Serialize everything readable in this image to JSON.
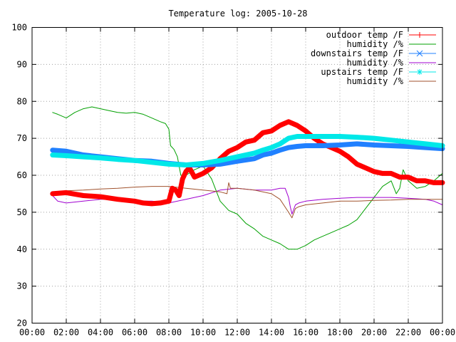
{
  "chart_data": {
    "type": "line",
    "title": "Temperature log: 2005-10-28",
    "xlabel": "",
    "ylabel": "",
    "xlim": [
      0,
      24
    ],
    "ylim": [
      20,
      100
    ],
    "grid": true,
    "legend_position": "top-right",
    "x_tick_labels": [
      "00:00",
      "02:00",
      "04:00",
      "06:00",
      "08:00",
      "10:00",
      "12:00",
      "14:00",
      "16:00",
      "18:00",
      "20:00",
      "22:00",
      "00:00"
    ],
    "y_tick_labels": [
      "20",
      "30",
      "40",
      "50",
      "60",
      "70",
      "80",
      "90",
      "100"
    ],
    "series": [
      {
        "name": "outdoor temp /F",
        "color": "#ff0000",
        "style": "thick",
        "x": [
          1.2,
          2.0,
          3.0,
          4.0,
          5.0,
          6.0,
          6.5,
          7.0,
          7.5,
          8.0,
          8.2,
          8.4,
          8.6,
          8.8,
          9.0,
          9.2,
          9.5,
          10.0,
          10.5,
          11.0,
          11.5,
          12.0,
          12.5,
          13.0,
          13.5,
          14.0,
          14.5,
          15.0,
          15.5,
          16.0,
          16.5,
          17.0,
          17.5,
          18.0,
          18.5,
          19.0,
          19.5,
          20.0,
          20.5,
          21.0,
          21.5,
          22.0,
          22.5,
          23.0,
          23.5,
          24.0
        ],
        "y": [
          55.0,
          55.3,
          54.5,
          54.2,
          53.5,
          53.0,
          52.5,
          52.3,
          52.5,
          53.0,
          56.5,
          56.0,
          54.5,
          59.0,
          61.0,
          62.0,
          59.5,
          60.5,
          62.0,
          64.5,
          66.5,
          67.5,
          69.0,
          69.5,
          71.5,
          72.0,
          73.5,
          74.5,
          73.5,
          72.0,
          70.0,
          68.5,
          67.5,
          66.5,
          65.0,
          63.0,
          62.0,
          61.0,
          60.5,
          60.5,
          59.5,
          59.5,
          58.5,
          58.5,
          58.0,
          58.0
        ]
      },
      {
        "name": "humidity /%",
        "color": "#00a000",
        "style": "thin",
        "x": [
          1.2,
          1.5,
          2.0,
          2.5,
          3.0,
          3.5,
          4.0,
          4.5,
          5.0,
          5.5,
          6.0,
          6.5,
          7.0,
          7.5,
          7.8,
          8.0,
          8.1,
          8.3,
          8.5,
          8.7,
          9.0,
          9.5,
          10.0,
          10.5,
          11.0,
          11.5,
          12.0,
          12.5,
          13.0,
          13.5,
          14.0,
          14.5,
          15.0,
          15.5,
          16.0,
          16.5,
          17.0,
          17.5,
          18.0,
          18.5,
          19.0,
          19.5,
          20.0,
          20.5,
          21.0,
          21.3,
          21.5,
          21.7,
          22.0,
          22.5,
          23.0,
          23.5,
          24.0
        ],
        "y": [
          77.0,
          76.5,
          75.5,
          77.0,
          78.0,
          78.5,
          78.0,
          77.5,
          77.0,
          76.8,
          77.0,
          76.5,
          75.5,
          74.5,
          74.0,
          72.5,
          68.0,
          67.0,
          65.0,
          60.0,
          60.0,
          61.5,
          62.5,
          59.0,
          53.0,
          50.5,
          49.5,
          47.0,
          45.5,
          43.5,
          42.5,
          41.5,
          40.0,
          40.0,
          41.0,
          42.5,
          43.5,
          44.5,
          45.5,
          46.5,
          48.0,
          51.0,
          54.0,
          57.0,
          58.5,
          55.0,
          56.5,
          61.5,
          58.5,
          56.5,
          57.0,
          58.5,
          60.5
        ]
      },
      {
        "name": "downstairs temp /F",
        "color": "#2080ff",
        "style": "thick",
        "x": [
          1.2,
          2.0,
          3.0,
          4.0,
          5.0,
          6.0,
          7.0,
          8.0,
          9.0,
          10.0,
          11.0,
          12.0,
          13.0,
          13.5,
          14.0,
          14.5,
          15.0,
          15.5,
          16.0,
          17.0,
          18.0,
          19.0,
          20.0,
          21.0,
          22.0,
          23.0,
          24.0
        ],
        "y": [
          66.8,
          66.5,
          65.5,
          65.0,
          64.5,
          64.0,
          63.8,
          63.2,
          62.8,
          62.8,
          63.0,
          63.8,
          64.5,
          65.5,
          66.0,
          66.8,
          67.5,
          67.8,
          68.0,
          68.0,
          68.2,
          68.5,
          68.2,
          68.0,
          67.8,
          67.5,
          67.2
        ]
      },
      {
        "name": "humidity /%",
        "color": "#a000d0",
        "style": "thin",
        "x": [
          1.2,
          1.5,
          2.0,
          3.0,
          4.0,
          5.0,
          6.0,
          7.0,
          8.0,
          9.0,
          10.0,
          11.0,
          12.0,
          13.0,
          14.0,
          14.5,
          14.8,
          15.0,
          15.1,
          15.2,
          15.4,
          15.6,
          16.0,
          17.0,
          18.0,
          19.0,
          20.0,
          21.0,
          22.0,
          23.0,
          23.5,
          24.0
        ],
        "y": [
          54.5,
          53.0,
          52.5,
          53.0,
          53.5,
          53.5,
          53.0,
          53.0,
          52.5,
          53.5,
          54.5,
          56.0,
          56.5,
          56.0,
          56.0,
          56.5,
          56.5,
          54.0,
          51.5,
          49.5,
          52.0,
          52.5,
          53.0,
          53.5,
          53.8,
          54.0,
          54.0,
          54.0,
          53.8,
          53.5,
          53.0,
          52.0
        ]
      },
      {
        "name": "upstairs temp /F",
        "color": "#00e8e8",
        "style": "thick",
        "x": [
          1.2,
          2.0,
          3.0,
          4.0,
          5.0,
          6.0,
          7.0,
          8.0,
          9.0,
          10.0,
          11.0,
          12.0,
          13.0,
          13.5,
          14.0,
          14.5,
          15.0,
          15.5,
          16.0,
          17.0,
          18.0,
          19.0,
          20.0,
          21.0,
          22.0,
          23.0,
          24.0
        ],
        "y": [
          65.5,
          65.3,
          65.0,
          64.7,
          64.3,
          64.0,
          63.5,
          63.0,
          62.8,
          63.2,
          64.0,
          65.0,
          66.0,
          66.8,
          67.5,
          68.5,
          70.0,
          70.5,
          70.5,
          70.5,
          70.5,
          70.3,
          70.0,
          69.5,
          69.0,
          68.5,
          68.0
        ]
      },
      {
        "name": "humidity /%",
        "color": "#a0522d",
        "style": "thin",
        "x": [
          1.2,
          2.0,
          3.0,
          4.0,
          5.0,
          6.0,
          7.0,
          8.0,
          9.0,
          10.0,
          11.0,
          11.4,
          11.5,
          11.6,
          12.0,
          13.0,
          14.0,
          14.5,
          15.0,
          15.2,
          15.4,
          15.6,
          16.0,
          17.0,
          18.0,
          19.0,
          20.0,
          21.0,
          22.0,
          23.0,
          24.0
        ],
        "y": [
          55.5,
          55.8,
          56.0,
          56.3,
          56.5,
          56.8,
          57.0,
          57.0,
          56.5,
          56.0,
          55.5,
          55.0,
          58.0,
          56.5,
          56.5,
          56.0,
          55.0,
          53.5,
          50.0,
          48.5,
          51.0,
          51.5,
          52.0,
          52.5,
          53.0,
          53.0,
          53.2,
          53.3,
          53.5,
          53.5,
          53.5
        ]
      }
    ]
  }
}
